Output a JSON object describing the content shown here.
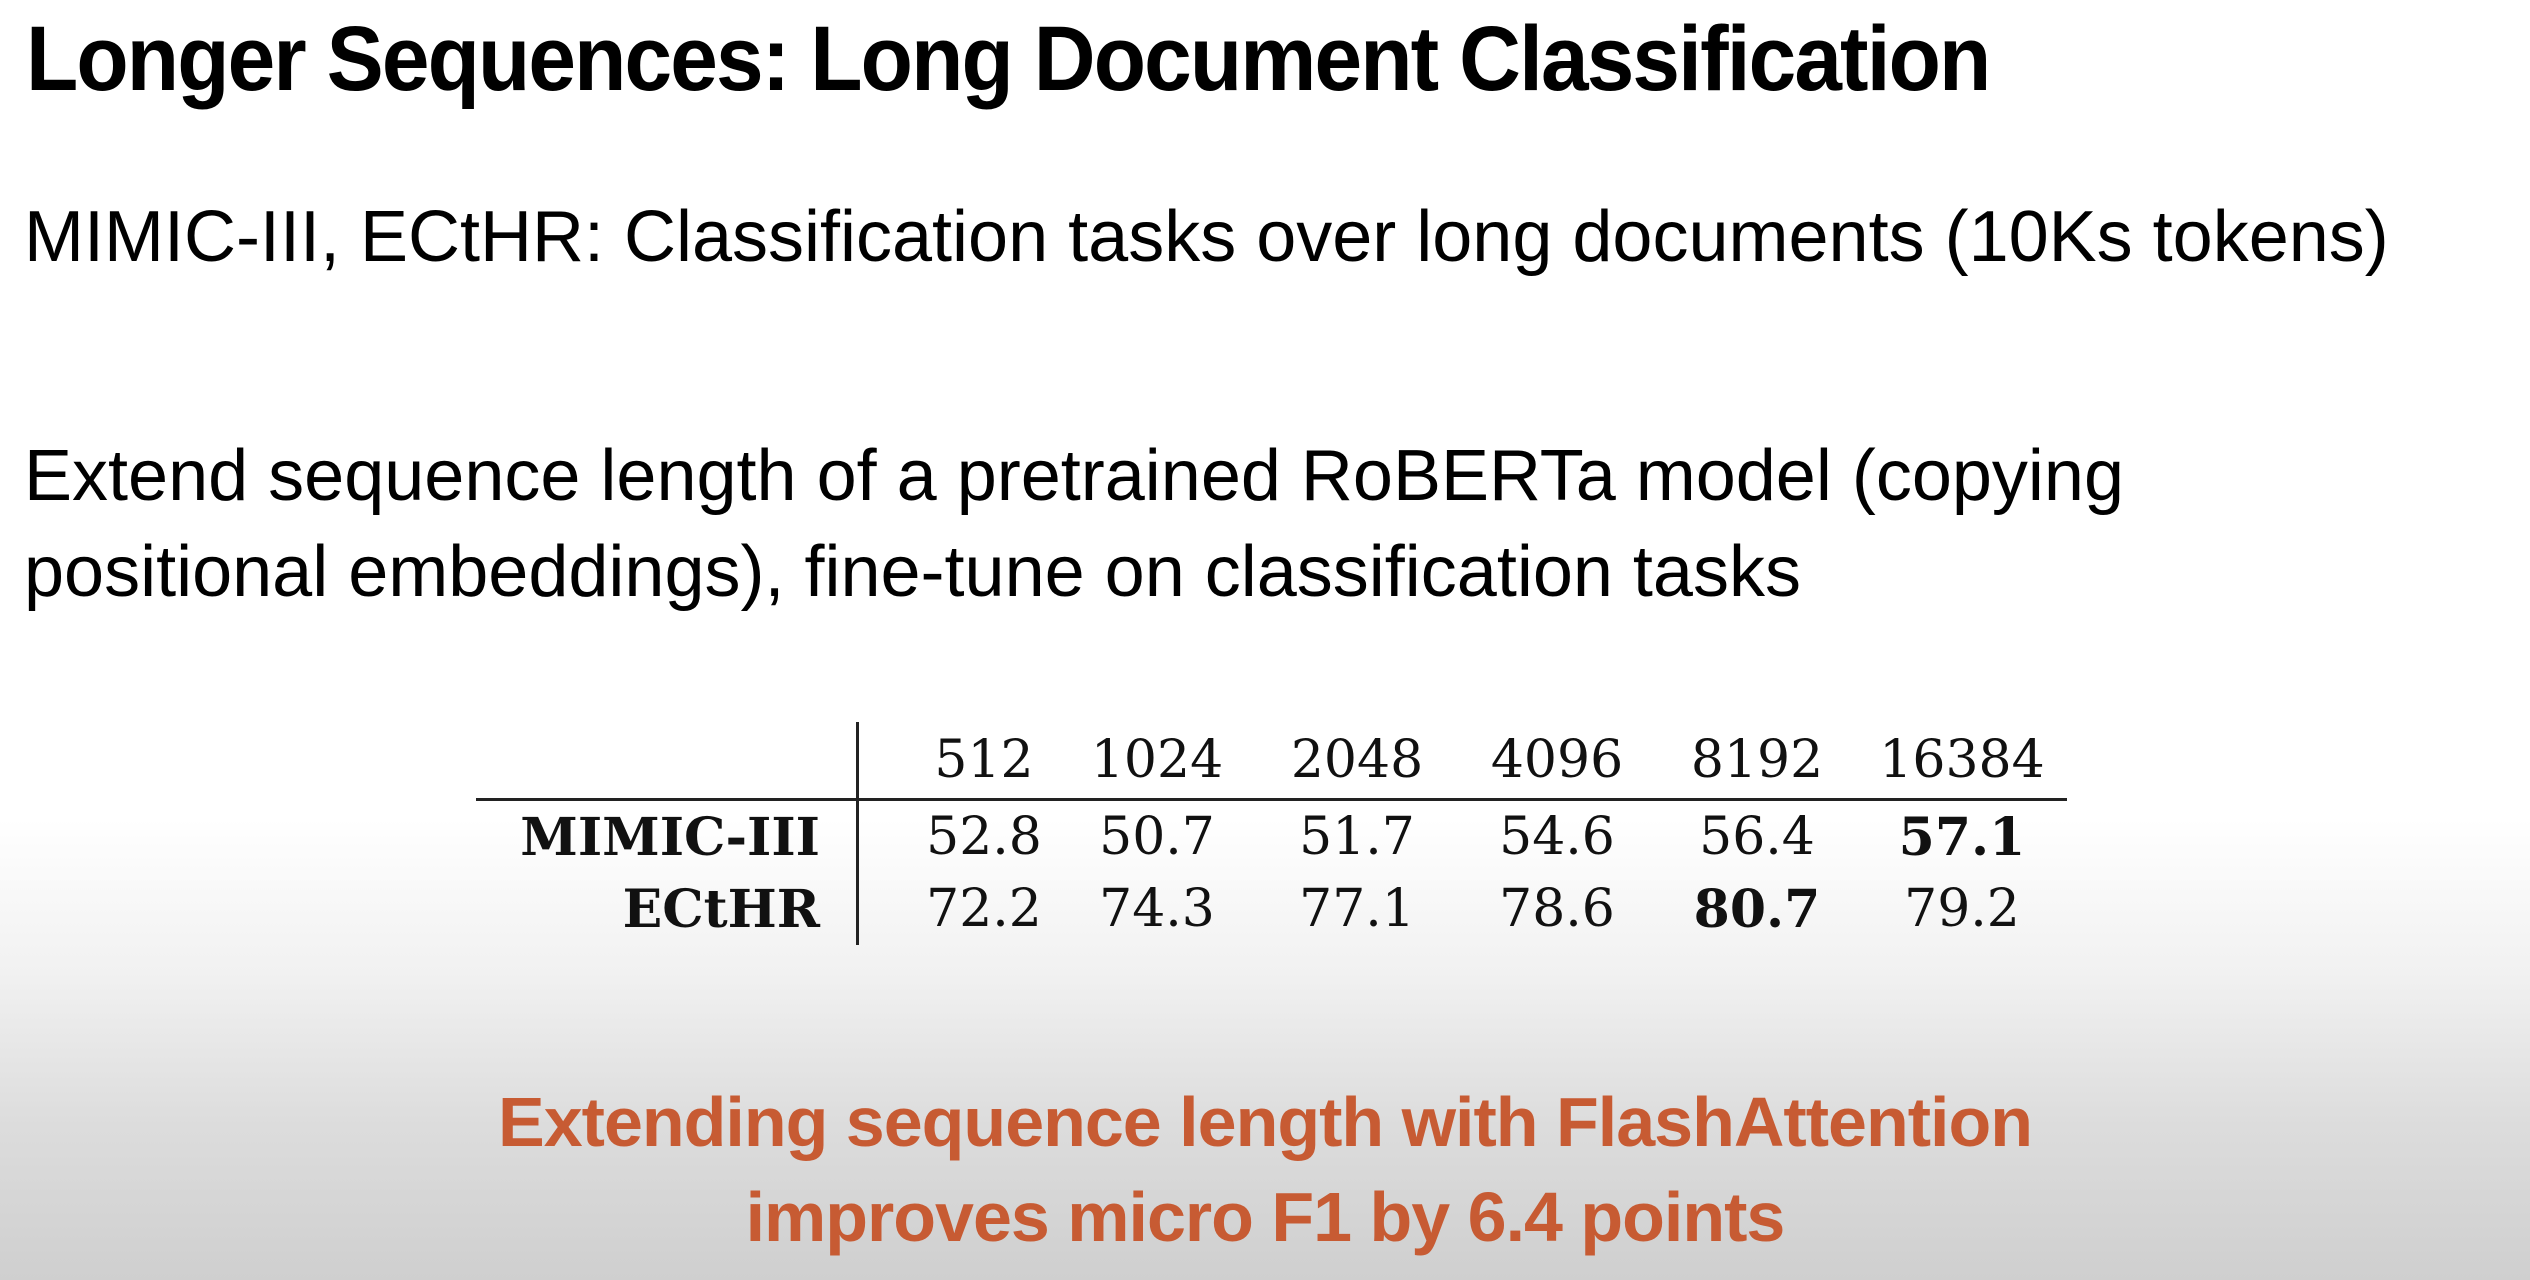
{
  "slide": {
    "title": "Longer Sequences: Long Document Classification",
    "line1": "MIMIC-III, ECtHR: Classification tasks over long documents (10Ks tokens)",
    "line2a": "Extend sequence length of a pretrained RoBERTa model (copying",
    "line2b": "positional embeddings), fine-tune on classification tasks",
    "callout_line1": "Extending sequence length with FlashAttention",
    "callout_line2": "improves micro F1 by 6.4 points"
  },
  "table": {
    "columns": [
      "512",
      "1024",
      "2048",
      "4096",
      "8192",
      "16384"
    ],
    "rows": [
      {
        "label": "MIMIC-III",
        "values": [
          "52.8",
          "50.7",
          "51.7",
          "54.6",
          "56.4",
          "57.1"
        ],
        "bold_index": 5
      },
      {
        "label": "ECtHR",
        "values": [
          "72.2",
          "74.3",
          "77.1",
          "78.6",
          "80.7",
          "79.2"
        ],
        "bold_index": 4
      }
    ]
  }
}
